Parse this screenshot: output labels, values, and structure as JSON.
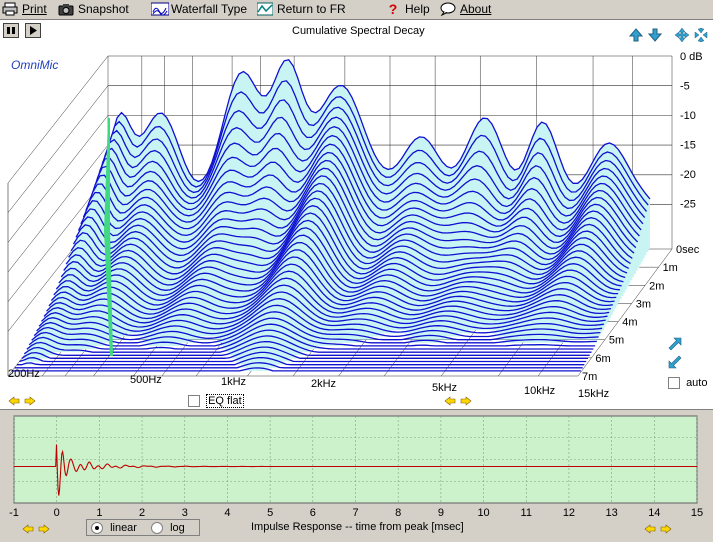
{
  "menu": {
    "print": "Print",
    "snapshot": "Snapshot",
    "waterfall_type": "Waterfall Type",
    "return_to_fr": "Return to FR",
    "help": "Help",
    "about": "About"
  },
  "waterfall": {
    "title": "Cumulative Spectral Decay",
    "brand": "OmniMic",
    "db_ticks": [
      "0 dB",
      "-5",
      "-10",
      "-15",
      "-20",
      "-25"
    ],
    "time_ticks": [
      "0sec",
      "1m",
      "2m",
      "3m",
      "4m",
      "5m",
      "6m",
      "7m"
    ],
    "freq_ticks": [
      "200Hz",
      "500Hz",
      "1kHz",
      "2kHz",
      "5kHz",
      "10kHz",
      "15kHz"
    ],
    "eq_flat_label": "EQ flat",
    "auto_label": "auto",
    "colors": {
      "fill": "#c8f4f4",
      "line": "#1010d0",
      "grid": "#303030",
      "accent": "#40d880"
    }
  },
  "impulse": {
    "caption": "Impulse Response  -- time from peak [msec]",
    "x_ticks": [
      "-1",
      "0",
      "1",
      "2",
      "3",
      "4",
      "5",
      "6",
      "7",
      "8",
      "9",
      "10",
      "11",
      "12",
      "13",
      "14",
      "15"
    ],
    "linear_label": "linear",
    "log_label": "log",
    "scale_selected": "linear",
    "colors": {
      "plot_bg": "#ccf2cc",
      "trace": "#c00000",
      "grid": "#80a080"
    }
  }
}
